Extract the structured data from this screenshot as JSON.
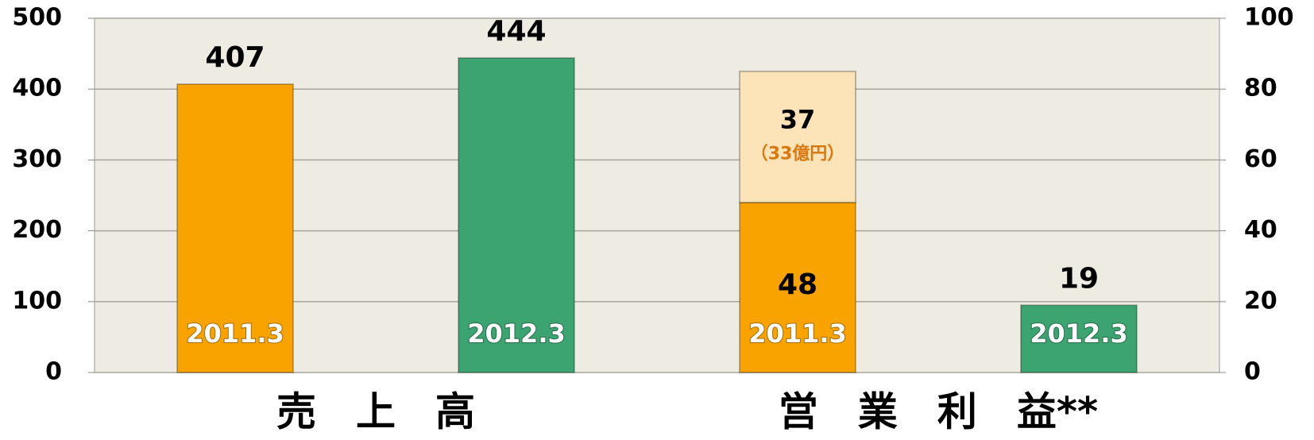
{
  "chart_data": {
    "type": "bar",
    "categories": [
      "2011.3",
      "2012.3",
      "2011.3",
      "2012.3"
    ],
    "groups": [
      "売　上　高",
      "営　業　利　益**"
    ],
    "series": [
      {
        "values": [
          407,
          444,
          null,
          null
        ],
        "colors": [
          "#f8a300",
          "#3ba470",
          null,
          null
        ]
      },
      {
        "values": [
          null,
          null,
          48,
          19
        ],
        "axis": "y2",
        "colors": [
          null,
          null,
          "#f8a300",
          "#3ba470"
        ]
      },
      {
        "values": [
          null,
          null,
          37,
          null
        ],
        "axis": "y2",
        "colors": [
          null,
          null,
          "#fde3b8",
          null
        ],
        "label_color": "#d9780f",
        "annotations": [
          null,
          null,
          "（33億円）",
          null
        ]
      }
    ],
    "ylim": [
      0,
      500
    ],
    "yticks": [
      0,
      100,
      200,
      300,
      400,
      500
    ],
    "y2lim": [
      0,
      100
    ],
    "y2ticks": [
      0,
      20,
      40,
      60,
      80,
      100
    ],
    "grid": true
  }
}
